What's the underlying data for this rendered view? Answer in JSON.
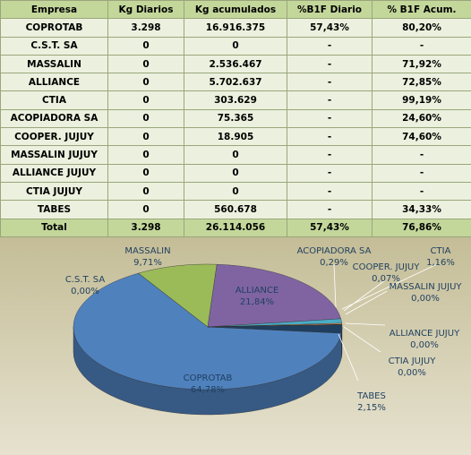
{
  "table": {
    "header": [
      "Empresa",
      "Kg Diarios",
      "Kg acumulados",
      "%B1F Diario",
      "% B1F Acum."
    ],
    "rows": [
      [
        "COPROTAB",
        "3.298",
        "16.916.375",
        "57,43%",
        "80,20%"
      ],
      [
        "C.S.T. SA",
        "0",
        "0",
        "-",
        "-"
      ],
      [
        "MASSALIN",
        "0",
        "2.536.467",
        "-",
        "71,92%"
      ],
      [
        "ALLIANCE",
        "0",
        "5.702.637",
        "-",
        "72,85%"
      ],
      [
        "CTIA",
        "0",
        "303.629",
        "-",
        "99,19%"
      ],
      [
        "ACOPIADORA SA",
        "0",
        "75.365",
        "-",
        "24,60%"
      ],
      [
        "COOPER. JUJUY",
        "0",
        "18.905",
        "-",
        "74,60%"
      ],
      [
        "MASSALIN JUJUY",
        "0",
        "0",
        "-",
        "-"
      ],
      [
        "ALLIANCE JUJUY",
        "0",
        "0",
        "-",
        "-"
      ],
      [
        "CTIA JUJUY",
        "0",
        "0",
        "-",
        "-"
      ],
      [
        "TABES",
        "0",
        "560.678",
        "-",
        "34,33%"
      ]
    ],
    "total": [
      "Total",
      "3.298",
      "26.114.056",
      "57,43%",
      "76,86%"
    ]
  },
  "chart_data": {
    "type": "pie",
    "categories": [
      "COPROTAB",
      "C.S.T. SA",
      "MASSALIN",
      "ALLIANCE",
      "CTIA",
      "ACOPIADORA SA",
      "COOPER. JUJUY",
      "MASSALIN JUJUY",
      "ALLIANCE JUJUY",
      "CTIA JUJUY",
      "TABES"
    ],
    "values": [
      64.78,
      0,
      9.71,
      21.84,
      1.16,
      0.29,
      0.07,
      0,
      0,
      0,
      2.15
    ],
    "value_labels": [
      "64,78%",
      "0,00%",
      "9,71%",
      "21,84%",
      "1,16%",
      "0,29%",
      "0,07%",
      "0,00%",
      "0,00%",
      "0,00%",
      "2,15%"
    ],
    "colors": [
      "#4f81bd",
      "#c0504d",
      "#9bbb59",
      "#8064a2",
      "#4bacc6",
      "#f79646",
      "#2c4d75",
      "#772c2a",
      "#5f7530",
      "#4d3b62",
      "#1f3f5f"
    ]
  }
}
